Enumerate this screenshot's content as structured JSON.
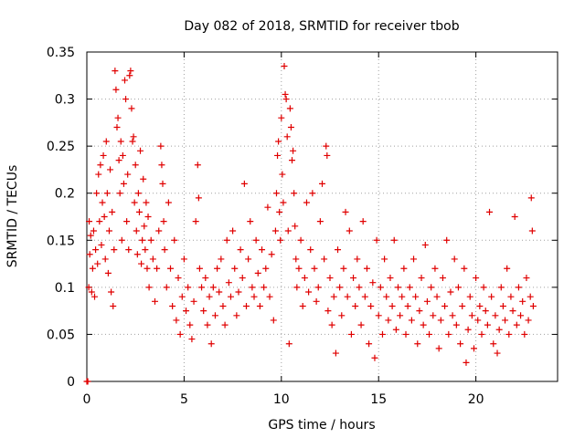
{
  "chart_data": {
    "type": "scatter",
    "title": "Day 082 of 2018, SRMTID for receiver tbob",
    "xlabel": "GPS time / hours",
    "ylabel": "SRMTID / TECUs",
    "xlim": [
      0,
      24.2
    ],
    "ylim": [
      0,
      0.35
    ],
    "x_ticks": [
      0,
      5,
      10,
      15,
      20
    ],
    "x_tick_labels": [
      "0",
      "5",
      "10",
      "15",
      "20"
    ],
    "y_ticks": [
      0,
      0.05,
      0.1,
      0.15,
      0.2,
      0.25,
      0.3,
      0.35
    ],
    "y_tick_labels": [
      "0",
      "0.05",
      "0.1",
      "0.15",
      "0.2",
      "0.25",
      "0.3",
      "0.35"
    ],
    "grid": true,
    "marker": "plus",
    "marker_color": "#e00000",
    "series": [
      {
        "name": "SRMTID",
        "points": [
          [
            0.0,
            0.0
          ],
          [
            0.05,
            0.0
          ],
          [
            0.1,
            0.1
          ],
          [
            0.12,
            0.17
          ],
          [
            0.15,
            0.135
          ],
          [
            0.2,
            0.155
          ],
          [
            0.25,
            0.095
          ],
          [
            0.3,
            0.12
          ],
          [
            0.35,
            0.16
          ],
          [
            0.4,
            0.09
          ],
          [
            0.45,
            0.14
          ],
          [
            0.5,
            0.2
          ],
          [
            0.55,
            0.125
          ],
          [
            0.6,
            0.22
          ],
          [
            0.65,
            0.17
          ],
          [
            0.7,
            0.23
          ],
          [
            0.75,
            0.145
          ],
          [
            0.8,
            0.19
          ],
          [
            0.85,
            0.24
          ],
          [
            0.9,
            0.175
          ],
          [
            0.95,
            0.13
          ],
          [
            1.0,
            0.255
          ],
          [
            1.05,
            0.2
          ],
          [
            1.1,
            0.115
          ],
          [
            1.15,
            0.16
          ],
          [
            1.2,
            0.225
          ],
          [
            1.25,
            0.095
          ],
          [
            1.3,
            0.18
          ],
          [
            1.35,
            0.08
          ],
          [
            1.4,
            0.14
          ],
          [
            1.45,
            0.33
          ],
          [
            1.5,
            0.31
          ],
          [
            1.55,
            0.27
          ],
          [
            1.6,
            0.28
          ],
          [
            1.65,
            0.235
          ],
          [
            1.7,
            0.2
          ],
          [
            1.75,
            0.255
          ],
          [
            1.8,
            0.15
          ],
          [
            1.85,
            0.24
          ],
          [
            1.9,
            0.21
          ],
          [
            1.95,
            0.32
          ],
          [
            2.0,
            0.3
          ],
          [
            2.05,
            0.17
          ],
          [
            2.1,
            0.22
          ],
          [
            2.15,
            0.14
          ],
          [
            2.2,
            0.325
          ],
          [
            2.25,
            0.33
          ],
          [
            2.3,
            0.29
          ],
          [
            2.35,
            0.255
          ],
          [
            2.4,
            0.26
          ],
          [
            2.45,
            0.19
          ],
          [
            2.5,
            0.23
          ],
          [
            2.55,
            0.16
          ],
          [
            2.6,
            0.135
          ],
          [
            2.65,
            0.2
          ],
          [
            2.7,
            0.18
          ],
          [
            2.75,
            0.245
          ],
          [
            2.8,
            0.125
          ],
          [
            2.85,
            0.15
          ],
          [
            2.9,
            0.215
          ],
          [
            2.95,
            0.165
          ],
          [
            3.0,
            0.14
          ],
          [
            3.05,
            0.19
          ],
          [
            3.1,
            0.12
          ],
          [
            3.15,
            0.175
          ],
          [
            3.2,
            0.1
          ],
          [
            3.3,
            0.15
          ],
          [
            3.4,
            0.13
          ],
          [
            3.5,
            0.085
          ],
          [
            3.6,
            0.12
          ],
          [
            3.7,
            0.16
          ],
          [
            3.8,
            0.25
          ],
          [
            3.85,
            0.23
          ],
          [
            3.9,
            0.21
          ],
          [
            3.95,
            0.17
          ],
          [
            4.0,
            0.14
          ],
          [
            4.1,
            0.1
          ],
          [
            4.2,
            0.19
          ],
          [
            4.3,
            0.12
          ],
          [
            4.4,
            0.08
          ],
          [
            4.5,
            0.15
          ],
          [
            4.6,
            0.065
          ],
          [
            4.7,
            0.11
          ],
          [
            4.8,
            0.05
          ],
          [
            4.9,
            0.09
          ],
          [
            5.0,
            0.13
          ],
          [
            5.1,
            0.075
          ],
          [
            5.2,
            0.1
          ],
          [
            5.3,
            0.06
          ],
          [
            5.4,
            0.045
          ],
          [
            5.5,
            0.085
          ],
          [
            5.6,
            0.17
          ],
          [
            5.7,
            0.23
          ],
          [
            5.75,
            0.195
          ],
          [
            5.8,
            0.12
          ],
          [
            5.9,
            0.1
          ],
          [
            6.0,
            0.075
          ],
          [
            6.1,
            0.11
          ],
          [
            6.2,
            0.06
          ],
          [
            6.3,
            0.09
          ],
          [
            6.4,
            0.04
          ],
          [
            6.5,
            0.1
          ],
          [
            6.6,
            0.07
          ],
          [
            6.7,
            0.12
          ],
          [
            6.8,
            0.095
          ],
          [
            6.9,
            0.13
          ],
          [
            7.0,
            0.08
          ],
          [
            7.1,
            0.06
          ],
          [
            7.2,
            0.15
          ],
          [
            7.3,
            0.105
          ],
          [
            7.4,
            0.09
          ],
          [
            7.5,
            0.16
          ],
          [
            7.6,
            0.12
          ],
          [
            7.7,
            0.07
          ],
          [
            7.8,
            0.095
          ],
          [
            7.9,
            0.14
          ],
          [
            8.0,
            0.11
          ],
          [
            8.1,
            0.21
          ],
          [
            8.2,
            0.08
          ],
          [
            8.3,
            0.13
          ],
          [
            8.4,
            0.17
          ],
          [
            8.5,
            0.1
          ],
          [
            8.6,
            0.09
          ],
          [
            8.7,
            0.15
          ],
          [
            8.8,
            0.115
          ],
          [
            8.9,
            0.08
          ],
          [
            9.0,
            0.14
          ],
          [
            9.1,
            0.1
          ],
          [
            9.2,
            0.12
          ],
          [
            9.3,
            0.185
          ],
          [
            9.4,
            0.09
          ],
          [
            9.5,
            0.135
          ],
          [
            9.6,
            0.065
          ],
          [
            9.7,
            0.16
          ],
          [
            9.75,
            0.2
          ],
          [
            9.8,
            0.24
          ],
          [
            9.85,
            0.255
          ],
          [
            9.9,
            0.18
          ],
          [
            9.95,
            0.15
          ],
          [
            10.0,
            0.28
          ],
          [
            10.05,
            0.22
          ],
          [
            10.1,
            0.19
          ],
          [
            10.15,
            0.335
          ],
          [
            10.2,
            0.305
          ],
          [
            10.25,
            0.3
          ],
          [
            10.3,
            0.26
          ],
          [
            10.35,
            0.16
          ],
          [
            10.4,
            0.04
          ],
          [
            10.45,
            0.29
          ],
          [
            10.5,
            0.27
          ],
          [
            10.55,
            0.235
          ],
          [
            10.6,
            0.245
          ],
          [
            10.65,
            0.2
          ],
          [
            10.7,
            0.165
          ],
          [
            10.75,
            0.13
          ],
          [
            10.8,
            0.1
          ],
          [
            10.9,
            0.12
          ],
          [
            11.0,
            0.15
          ],
          [
            11.1,
            0.08
          ],
          [
            11.2,
            0.11
          ],
          [
            11.3,
            0.19
          ],
          [
            11.4,
            0.095
          ],
          [
            11.5,
            0.14
          ],
          [
            11.6,
            0.2
          ],
          [
            11.7,
            0.12
          ],
          [
            11.8,
            0.085
          ],
          [
            11.9,
            0.1
          ],
          [
            12.0,
            0.17
          ],
          [
            12.1,
            0.21
          ],
          [
            12.2,
            0.13
          ],
          [
            12.3,
            0.25
          ],
          [
            12.35,
            0.24
          ],
          [
            12.4,
            0.075
          ],
          [
            12.5,
            0.11
          ],
          [
            12.6,
            0.06
          ],
          [
            12.7,
            0.09
          ],
          [
            12.8,
            0.03
          ],
          [
            12.9,
            0.14
          ],
          [
            13.0,
            0.1
          ],
          [
            13.1,
            0.07
          ],
          [
            13.2,
            0.12
          ],
          [
            13.3,
            0.18
          ],
          [
            13.4,
            0.09
          ],
          [
            13.5,
            0.16
          ],
          [
            13.6,
            0.05
          ],
          [
            13.7,
            0.11
          ],
          [
            13.8,
            0.08
          ],
          [
            13.9,
            0.13
          ],
          [
            14.0,
            0.1
          ],
          [
            14.1,
            0.06
          ],
          [
            14.2,
            0.17
          ],
          [
            14.3,
            0.09
          ],
          [
            14.4,
            0.12
          ],
          [
            14.5,
            0.04
          ],
          [
            14.6,
            0.08
          ],
          [
            14.7,
            0.105
          ],
          [
            14.8,
            0.025
          ],
          [
            14.9,
            0.15
          ],
          [
            15.0,
            0.07
          ],
          [
            15.1,
            0.1
          ],
          [
            15.2,
            0.05
          ],
          [
            15.3,
            0.13
          ],
          [
            15.4,
            0.09
          ],
          [
            15.5,
            0.065
          ],
          [
            15.6,
            0.11
          ],
          [
            15.7,
            0.08
          ],
          [
            15.8,
            0.15
          ],
          [
            15.9,
            0.055
          ],
          [
            16.0,
            0.1
          ],
          [
            16.1,
            0.07
          ],
          [
            16.2,
            0.09
          ],
          [
            16.3,
            0.12
          ],
          [
            16.4,
            0.05
          ],
          [
            16.5,
            0.08
          ],
          [
            16.6,
            0.1
          ],
          [
            16.7,
            0.065
          ],
          [
            16.8,
            0.13
          ],
          [
            16.9,
            0.09
          ],
          [
            17.0,
            0.04
          ],
          [
            17.1,
            0.075
          ],
          [
            17.2,
            0.11
          ],
          [
            17.3,
            0.06
          ],
          [
            17.4,
            0.145
          ],
          [
            17.5,
            0.085
          ],
          [
            17.6,
            0.05
          ],
          [
            17.7,
            0.1
          ],
          [
            17.8,
            0.07
          ],
          [
            17.9,
            0.12
          ],
          [
            18.0,
            0.09
          ],
          [
            18.1,
            0.035
          ],
          [
            18.2,
            0.065
          ],
          [
            18.3,
            0.11
          ],
          [
            18.4,
            0.08
          ],
          [
            18.5,
            0.15
          ],
          [
            18.6,
            0.05
          ],
          [
            18.7,
            0.095
          ],
          [
            18.8,
            0.07
          ],
          [
            18.9,
            0.13
          ],
          [
            19.0,
            0.06
          ],
          [
            19.1,
            0.1
          ],
          [
            19.2,
            0.04
          ],
          [
            19.3,
            0.08
          ],
          [
            19.4,
            0.12
          ],
          [
            19.5,
            0.02
          ],
          [
            19.6,
            0.055
          ],
          [
            19.7,
            0.09
          ],
          [
            19.8,
            0.07
          ],
          [
            19.9,
            0.035
          ],
          [
            20.0,
            0.11
          ],
          [
            20.1,
            0.065
          ],
          [
            20.2,
            0.08
          ],
          [
            20.3,
            0.05
          ],
          [
            20.4,
            0.1
          ],
          [
            20.5,
            0.075
          ],
          [
            20.6,
            0.06
          ],
          [
            20.7,
            0.18
          ],
          [
            20.8,
            0.09
          ],
          [
            20.9,
            0.04
          ],
          [
            21.0,
            0.07
          ],
          [
            21.1,
            0.03
          ],
          [
            21.2,
            0.055
          ],
          [
            21.3,
            0.1
          ],
          [
            21.4,
            0.08
          ],
          [
            21.5,
            0.065
          ],
          [
            21.6,
            0.12
          ],
          [
            21.7,
            0.05
          ],
          [
            21.8,
            0.09
          ],
          [
            21.9,
            0.075
          ],
          [
            22.0,
            0.175
          ],
          [
            22.1,
            0.06
          ],
          [
            22.2,
            0.1
          ],
          [
            22.3,
            0.07
          ],
          [
            22.4,
            0.085
          ],
          [
            22.5,
            0.05
          ],
          [
            22.6,
            0.11
          ],
          [
            22.7,
            0.065
          ],
          [
            22.8,
            0.09
          ],
          [
            22.85,
            0.195
          ],
          [
            22.9,
            0.16
          ],
          [
            22.95,
            0.08
          ]
        ]
      }
    ]
  }
}
